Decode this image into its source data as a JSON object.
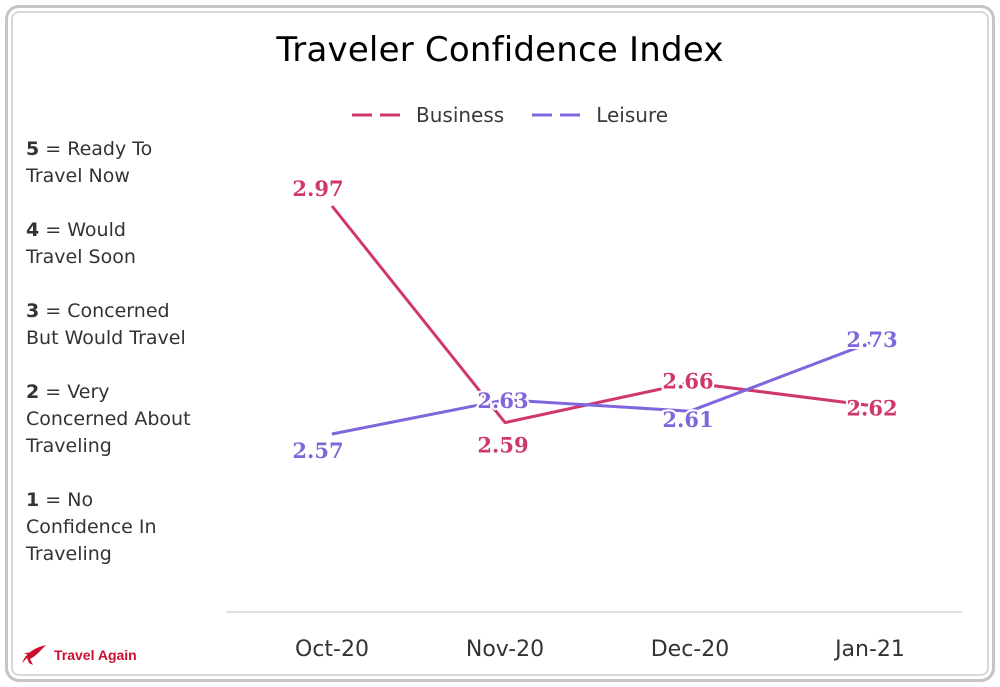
{
  "chart_data": {
    "type": "line",
    "title": "Traveler Confidence Index",
    "categories": [
      "Oct-20",
      "Nov-20",
      "Dec-20",
      "Jan-21"
    ],
    "series": [
      {
        "name": "Business",
        "values": [
          2.97,
          2.59,
          2.66,
          2.62
        ],
        "color": "#d0376e"
      },
      {
        "name": "Leisure",
        "values": [
          2.57,
          2.63,
          2.61,
          2.73
        ],
        "color": "#8066dc"
      }
    ],
    "ylim": [
      1,
      5
    ],
    "grid": false,
    "legend_position": "top-center",
    "xlabel": "",
    "ylabel": ""
  },
  "scale_legend": [
    {
      "num": "5",
      "text": "= Ready To",
      "text2": "Travel Now"
    },
    {
      "num": "4",
      "text": "= Would",
      "text2": "Travel Soon"
    },
    {
      "num": "3",
      "text": "= Concerned",
      "text2": "But Would Travel"
    },
    {
      "num": "2",
      "text": "= Very",
      "text2": "Concerned About",
      "text3": "Traveling"
    },
    {
      "num": "1",
      "text": "= No",
      "text2": "Confidence In",
      "text3": "Traveling"
    }
  ],
  "brand": {
    "name": "Travel Again",
    "icon": "plane-icon",
    "color": "#c8102e"
  }
}
